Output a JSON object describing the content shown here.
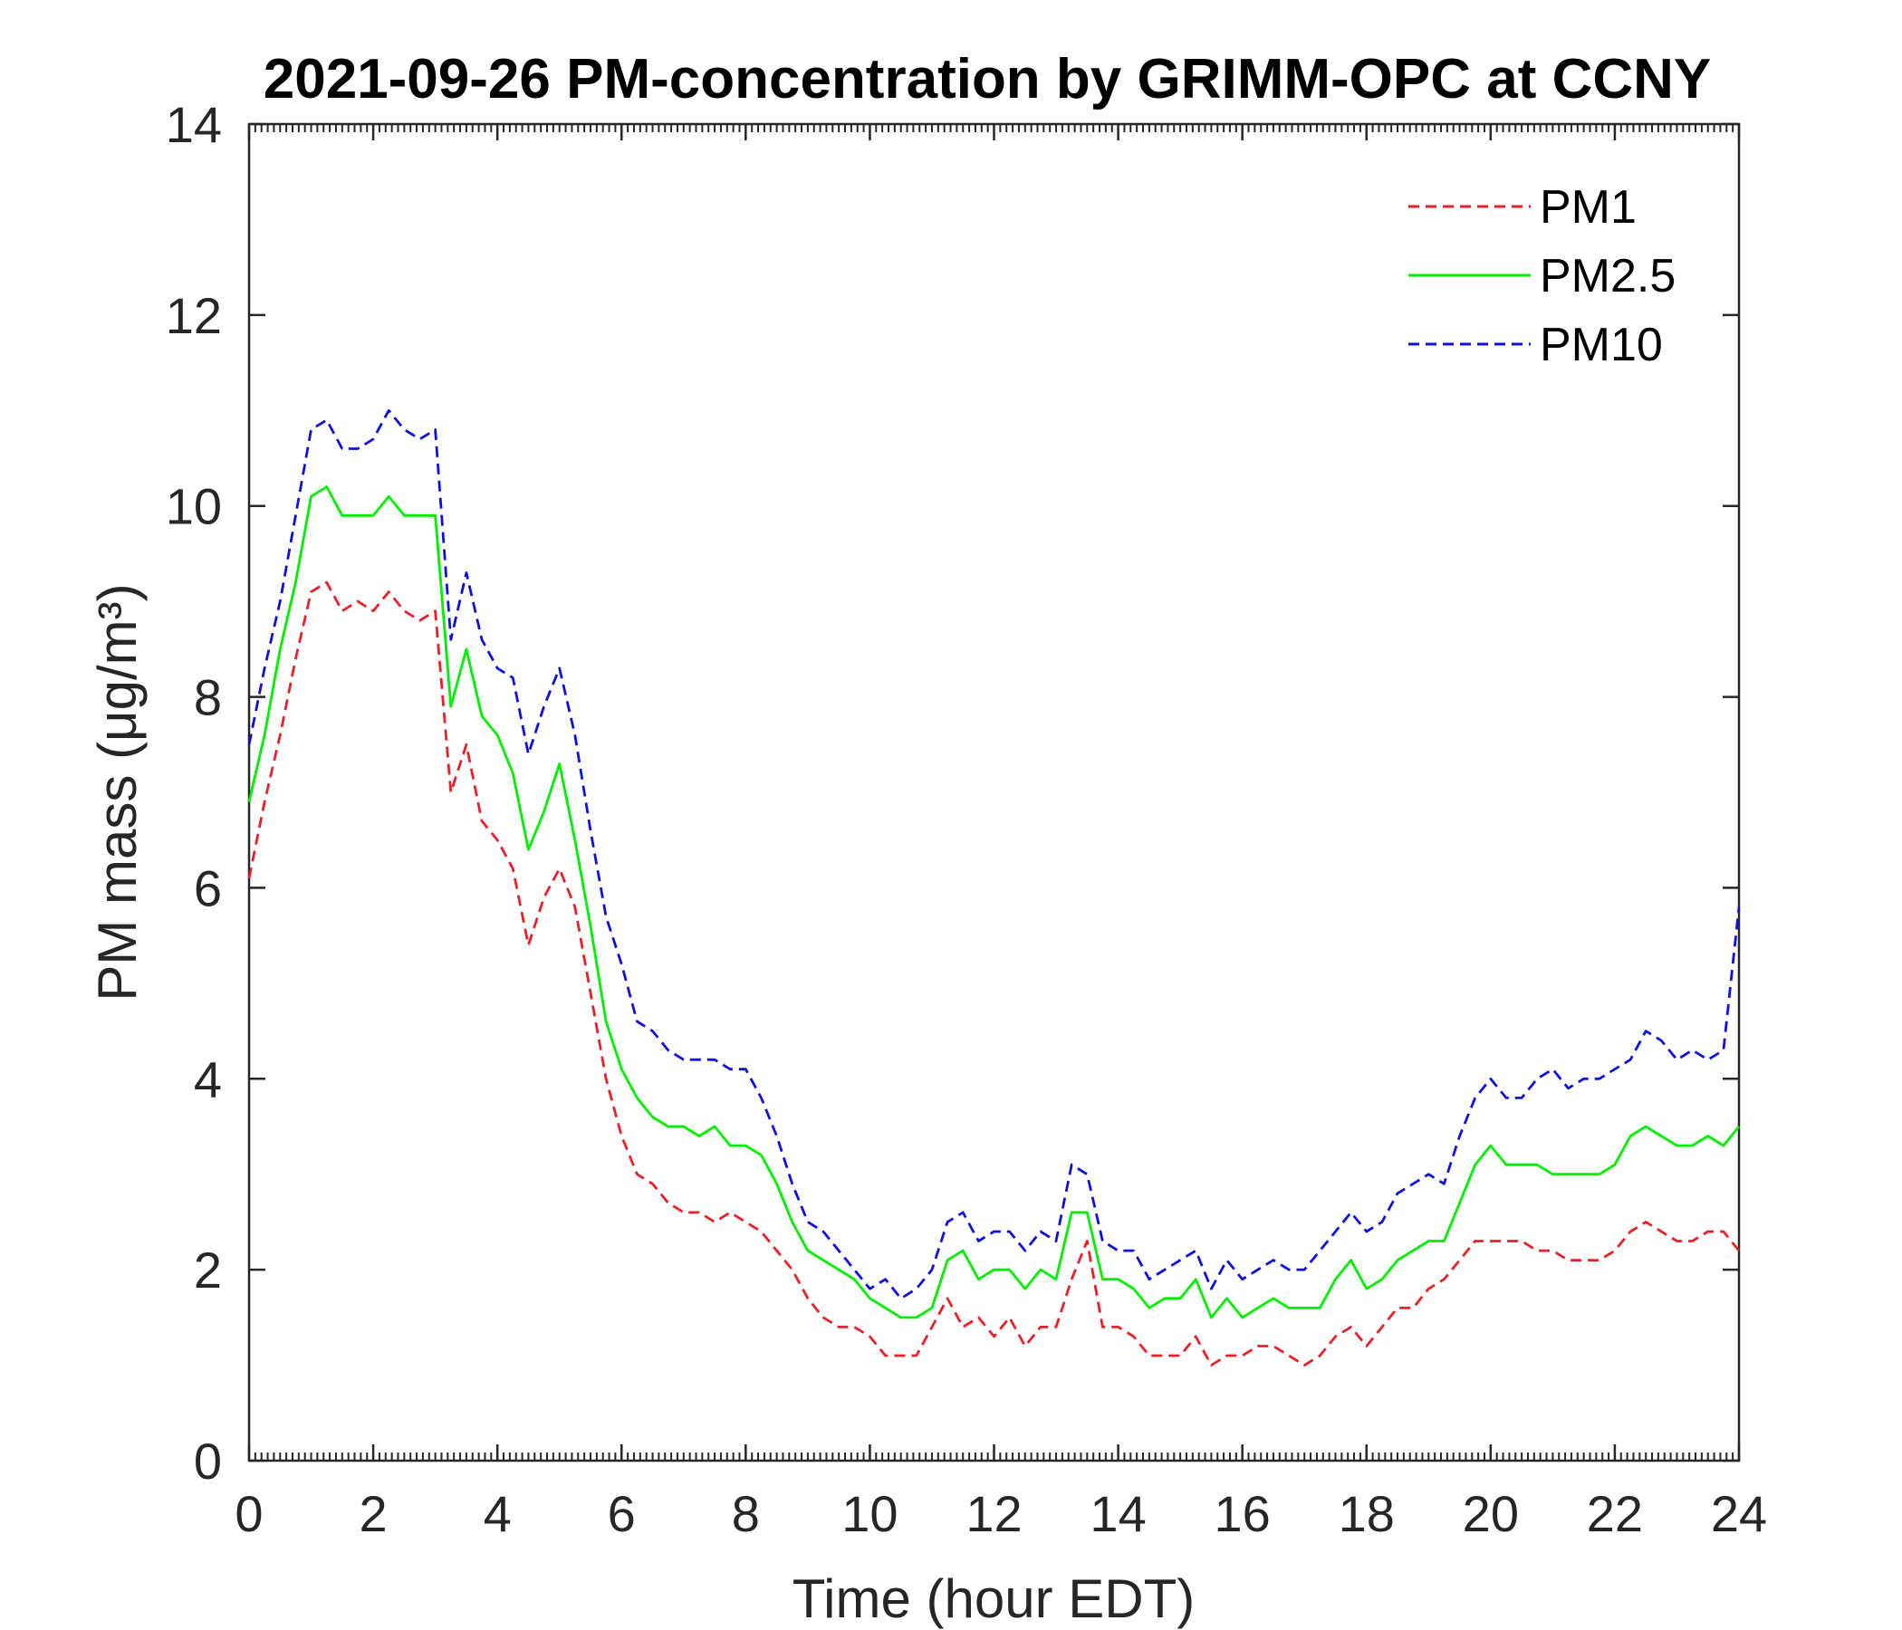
{
  "chart_data": {
    "type": "line",
    "title": "2021-09-26 PM-concentration by GRIMM-OPC at CCNY",
    "xlabel": "Time (hour EDT)",
    "ylabel": "PM mass (μg/m³)",
    "xlim": [
      0,
      24
    ],
    "ylim": [
      0,
      14
    ],
    "xticks": [
      "0",
      "2",
      "4",
      "6",
      "8",
      "10",
      "12",
      "14",
      "16",
      "18",
      "20",
      "22",
      "24"
    ],
    "yticks": [
      "0",
      "2",
      "4",
      "6",
      "8",
      "10",
      "12",
      "14"
    ],
    "grid": false,
    "legend_position": "top-right",
    "x": [
      0,
      0.25,
      0.5,
      0.75,
      1,
      1.25,
      1.5,
      1.75,
      2,
      2.25,
      2.5,
      2.75,
      3,
      3.25,
      3.5,
      3.75,
      4,
      4.25,
      4.5,
      4.75,
      5,
      5.25,
      5.5,
      5.75,
      6,
      6.25,
      6.5,
      6.75,
      7,
      7.25,
      7.5,
      7.75,
      8,
      8.25,
      8.5,
      8.75,
      9,
      9.25,
      9.5,
      9.75,
      10,
      10.25,
      10.5,
      10.75,
      11,
      11.25,
      11.5,
      11.75,
      12,
      12.25,
      12.5,
      12.75,
      13,
      13.25,
      13.5,
      13.75,
      14,
      14.25,
      14.5,
      14.75,
      15,
      15.25,
      15.5,
      15.75,
      16,
      16.25,
      16.5,
      16.75,
      17,
      17.25,
      17.5,
      17.75,
      18,
      18.25,
      18.5,
      18.75,
      19,
      19.25,
      19.5,
      19.75,
      20,
      20.25,
      20.5,
      20.75,
      21,
      21.25,
      21.5,
      21.75,
      22,
      22.25,
      22.5,
      22.75,
      23,
      23.25,
      23.5,
      23.75,
      24
    ],
    "series": [
      {
        "name": "PM1",
        "color": "#e8202a",
        "dash": "dashed",
        "values": [
          6.1,
          6.9,
          7.6,
          8.4,
          9.1,
          9.2,
          8.9,
          9.0,
          8.9,
          9.1,
          8.9,
          8.8,
          8.9,
          7.0,
          7.5,
          6.7,
          6.5,
          6.2,
          5.4,
          5.9,
          6.2,
          5.8,
          4.9,
          4.0,
          3.4,
          3.0,
          2.9,
          2.7,
          2.6,
          2.6,
          2.5,
          2.6,
          2.5,
          2.4,
          2.2,
          2.0,
          1.7,
          1.5,
          1.4,
          1.4,
          1.3,
          1.1,
          1.1,
          1.1,
          1.4,
          1.7,
          1.4,
          1.5,
          1.3,
          1.5,
          1.2,
          1.4,
          1.4,
          1.9,
          2.3,
          1.4,
          1.4,
          1.3,
          1.1,
          1.1,
          1.1,
          1.3,
          1.0,
          1.1,
          1.1,
          1.2,
          1.2,
          1.1,
          1.0,
          1.1,
          1.3,
          1.4,
          1.2,
          1.4,
          1.6,
          1.6,
          1.8,
          1.9,
          2.1,
          2.3,
          2.3,
          2.3,
          2.3,
          2.2,
          2.2,
          2.1,
          2.1,
          2.1,
          2.2,
          2.4,
          2.5,
          2.4,
          2.3,
          2.3,
          2.4,
          2.4,
          2.2
        ]
      },
      {
        "name": "PM2.5",
        "color": "#00ee00",
        "dash": "solid",
        "values": [
          6.9,
          7.6,
          8.5,
          9.2,
          10.1,
          10.2,
          9.9,
          9.9,
          9.9,
          10.1,
          9.9,
          9.9,
          9.9,
          7.9,
          8.5,
          7.8,
          7.6,
          7.2,
          6.4,
          6.8,
          7.3,
          6.5,
          5.6,
          4.6,
          4.1,
          3.8,
          3.6,
          3.5,
          3.5,
          3.4,
          3.5,
          3.3,
          3.3,
          3.2,
          2.9,
          2.5,
          2.2,
          2.1,
          2.0,
          1.9,
          1.7,
          1.6,
          1.5,
          1.5,
          1.6,
          2.1,
          2.2,
          1.9,
          2.0,
          2.0,
          1.8,
          2.0,
          1.9,
          2.6,
          2.6,
          1.9,
          1.9,
          1.8,
          1.6,
          1.7,
          1.7,
          1.9,
          1.5,
          1.7,
          1.5,
          1.6,
          1.7,
          1.6,
          1.6,
          1.6,
          1.9,
          2.1,
          1.8,
          1.9,
          2.1,
          2.2,
          2.3,
          2.3,
          2.7,
          3.1,
          3.3,
          3.1,
          3.1,
          3.1,
          3.0,
          3.0,
          3.0,
          3.0,
          3.1,
          3.4,
          3.5,
          3.4,
          3.3,
          3.3,
          3.4,
          3.3,
          3.5
        ]
      },
      {
        "name": "PM10",
        "color": "#1010dd",
        "dash": "dashed",
        "values": [
          7.5,
          8.3,
          9.0,
          9.9,
          10.8,
          10.9,
          10.6,
          10.6,
          10.7,
          11.0,
          10.8,
          10.7,
          10.8,
          8.6,
          9.3,
          8.6,
          8.3,
          8.2,
          7.4,
          7.9,
          8.3,
          7.6,
          6.6,
          5.7,
          5.2,
          4.6,
          4.5,
          4.3,
          4.2,
          4.2,
          4.2,
          4.1,
          4.1,
          3.8,
          3.4,
          2.9,
          2.5,
          2.4,
          2.2,
          2.0,
          1.8,
          1.9,
          1.7,
          1.8,
          2.0,
          2.5,
          2.6,
          2.3,
          2.4,
          2.4,
          2.2,
          2.4,
          2.3,
          3.1,
          3.0,
          2.3,
          2.2,
          2.2,
          1.9,
          2.0,
          2.1,
          2.2,
          1.8,
          2.1,
          1.9,
          2.0,
          2.1,
          2.0,
          2.0,
          2.2,
          2.4,
          2.6,
          2.4,
          2.5,
          2.8,
          2.9,
          3.0,
          2.9,
          3.4,
          3.8,
          4.0,
          3.8,
          3.8,
          4.0,
          4.1,
          3.9,
          4.0,
          4.0,
          4.1,
          4.2,
          4.5,
          4.4,
          4.2,
          4.3,
          4.2,
          4.3,
          5.8
        ]
      }
    ]
  }
}
